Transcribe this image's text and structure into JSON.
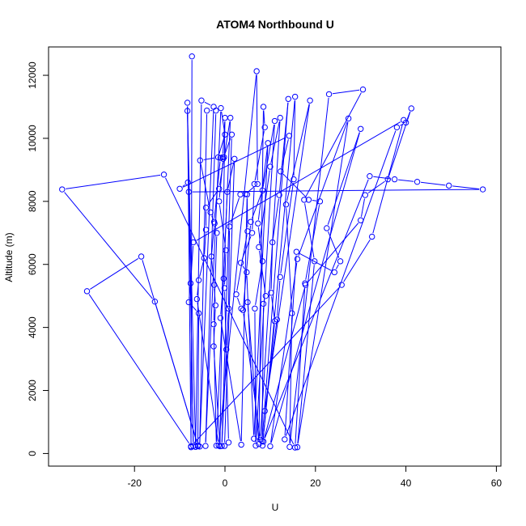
{
  "chart_data": {
    "type": "line",
    "title": "ATOM4 Northbound U",
    "xlabel": "U",
    "ylabel": "Altitude (m)",
    "xlim": [
      -39,
      61
    ],
    "ylim": [
      -400,
      12900
    ],
    "x_ticks": [
      -20,
      0,
      20,
      40,
      60
    ],
    "y_ticks": [
      0,
      2000,
      4000,
      6000,
      8000,
      10000,
      12000
    ],
    "x_tick_labels": [
      "-20",
      "0",
      "20",
      "40",
      "60"
    ],
    "y_tick_labels": [
      "0",
      "2000",
      "4000",
      "6000",
      "8000",
      "10000",
      "12000"
    ],
    "grid": false,
    "color": "#0000ff",
    "marker": "open-circle",
    "series": [
      {
        "points": [
          [
            -7.3,
            12600
          ],
          [
            -7.5,
            200
          ],
          [
            -8.3,
            11130
          ],
          [
            -7.0,
            240
          ],
          [
            -8.3,
            10870
          ],
          [
            -6.5,
            210
          ],
          [
            -5.2,
            11200
          ],
          [
            -2.5,
            11000
          ],
          [
            -5.6,
            220
          ],
          [
            -4.0,
            10880
          ],
          [
            -2.0,
            10880
          ],
          [
            -4.3,
            240
          ],
          [
            -0.9,
            10960
          ],
          [
            0.0,
            10120
          ],
          [
            -1.5,
            9400
          ],
          [
            -5.5,
            9300
          ],
          [
            -3.2,
            7650
          ],
          [
            -2.3,
            7300
          ],
          [
            -3.0,
            6250
          ],
          [
            -2.4,
            5350
          ],
          [
            -2.1,
            4700
          ],
          [
            -2.5,
            3400
          ],
          [
            -1.1,
            230
          ],
          [
            0.0,
            10650
          ],
          [
            -0.5,
            9400
          ],
          [
            -1.0,
            9380
          ],
          [
            -2.4,
            7350
          ],
          [
            -1.8,
            7000
          ],
          [
            -2.5,
            4100
          ],
          [
            -1.9,
            250
          ],
          [
            1.2,
            10650
          ],
          [
            -0.2,
            9400
          ],
          [
            -1.3,
            8400
          ],
          [
            -4.2,
            7800
          ],
          [
            -4.2,
            7100
          ],
          [
            -4.6,
            6200
          ],
          [
            -5.8,
            5500
          ],
          [
            -6.2,
            4900
          ],
          [
            -1.4,
            260
          ],
          [
            7.0,
            12130
          ],
          [
            7.2,
            8550
          ],
          [
            4.5,
            8230
          ],
          [
            3.4,
            8220
          ],
          [
            1.0,
            7200
          ],
          [
            0.8,
            4600
          ],
          [
            0.3,
            3300
          ],
          [
            -0.7,
            240
          ],
          [
            1.5,
            10120
          ],
          [
            -0.4,
            9350
          ],
          [
            -1.3,
            8000
          ],
          [
            0.2,
            6450
          ],
          [
            -0.1,
            5250
          ],
          [
            0.8,
            350
          ],
          [
            -0.1,
            240
          ],
          [
            2.1,
            9350
          ],
          [
            0.5,
            8300
          ],
          [
            -0.3,
            5550
          ],
          [
            -1.0,
            4300
          ],
          [
            3.6,
            280
          ],
          [
            4.9,
            8220
          ],
          [
            5.0,
            7050
          ],
          [
            2.5,
            5050
          ],
          [
            3.6,
            4600
          ],
          [
            5.0,
            4800
          ],
          [
            7.5,
            300
          ],
          [
            8.5,
            11000
          ],
          [
            8.8,
            10350
          ],
          [
            6.5,
            8550
          ],
          [
            6.0,
            7000
          ],
          [
            3.5,
            6050
          ],
          [
            4.8,
            5750
          ],
          [
            6.4,
            470
          ],
          [
            9.5,
            9850
          ],
          [
            7.3,
            7300
          ],
          [
            8.3,
            6100
          ],
          [
            6.6,
            4600
          ],
          [
            6.8,
            250
          ],
          [
            11.0,
            10550
          ],
          [
            8.3,
            8350
          ],
          [
            5.7,
            7350
          ],
          [
            4.0,
            4550
          ],
          [
            7.8,
            440
          ],
          [
            12.2,
            10650
          ],
          [
            10.0,
            9100
          ],
          [
            7.5,
            6550
          ],
          [
            9.0,
            5000
          ],
          [
            8.5,
            4750
          ],
          [
            8.2,
            400
          ],
          [
            14.0,
            11250
          ],
          [
            12.0,
            8200
          ],
          [
            10.5,
            6700
          ],
          [
            10.2,
            5100
          ],
          [
            11.0,
            4200
          ],
          [
            8.3,
            250
          ],
          [
            15.5,
            11320
          ],
          [
            15.2,
            8700
          ],
          [
            12.2,
            5600
          ],
          [
            11.5,
            4250
          ],
          [
            8.8,
            1350
          ],
          [
            18.8,
            11200
          ],
          [
            13.5,
            7900
          ],
          [
            14.8,
            4450
          ],
          [
            14.3,
            210
          ],
          [
            23.0,
            11400
          ],
          [
            30.5,
            11550
          ],
          [
            17.5,
            8050
          ],
          [
            19.8,
            6100
          ],
          [
            16.0,
            200
          ],
          [
            27.3,
            10630
          ],
          [
            16.0,
            6170
          ],
          [
            10.0,
            230
          ],
          [
            30.0,
            10300
          ],
          [
            22.5,
            7150
          ],
          [
            25.5,
            6100
          ],
          [
            24.2,
            5750
          ],
          [
            15.8,
            6400
          ],
          [
            13.2,
            450
          ],
          [
            38.0,
            10350
          ],
          [
            40.0,
            10500
          ],
          [
            41.2,
            10950
          ],
          [
            36.0,
            8700
          ],
          [
            31.0,
            8200
          ],
          [
            30.0,
            7400
          ],
          [
            17.8,
            5350
          ],
          [
            8.5,
            380
          ],
          [
            32.0,
            8800
          ],
          [
            37.5,
            8700
          ],
          [
            42.5,
            8620
          ],
          [
            49.5,
            8500
          ],
          [
            57.0,
            8380
          ],
          [
            -8.0,
            8300
          ],
          [
            -8.2,
            8600
          ],
          [
            -10.0,
            8400
          ],
          [
            14.2,
            10080
          ],
          [
            12.3,
            8950
          ],
          [
            18.5,
            8050
          ],
          [
            21.0,
            8000
          ],
          [
            17.7,
            5400
          ],
          [
            15.5,
            190
          ],
          [
            -13.5,
            8850
          ],
          [
            -36.0,
            8380
          ],
          [
            -15.5,
            4820
          ],
          [
            -6.0,
            260
          ],
          [
            -18.5,
            6250
          ],
          [
            -30.5,
            5150
          ],
          [
            -7.5,
            230
          ],
          [
            25.8,
            5350
          ],
          [
            32.5,
            6880
          ],
          [
            39.5,
            10580
          ],
          [
            -7.0,
            6700
          ],
          [
            -7.6,
            5400
          ],
          [
            -8.0,
            4800
          ],
          [
            -5.8,
            4450
          ],
          [
            -6.0,
            230
          ]
        ]
      }
    ]
  }
}
